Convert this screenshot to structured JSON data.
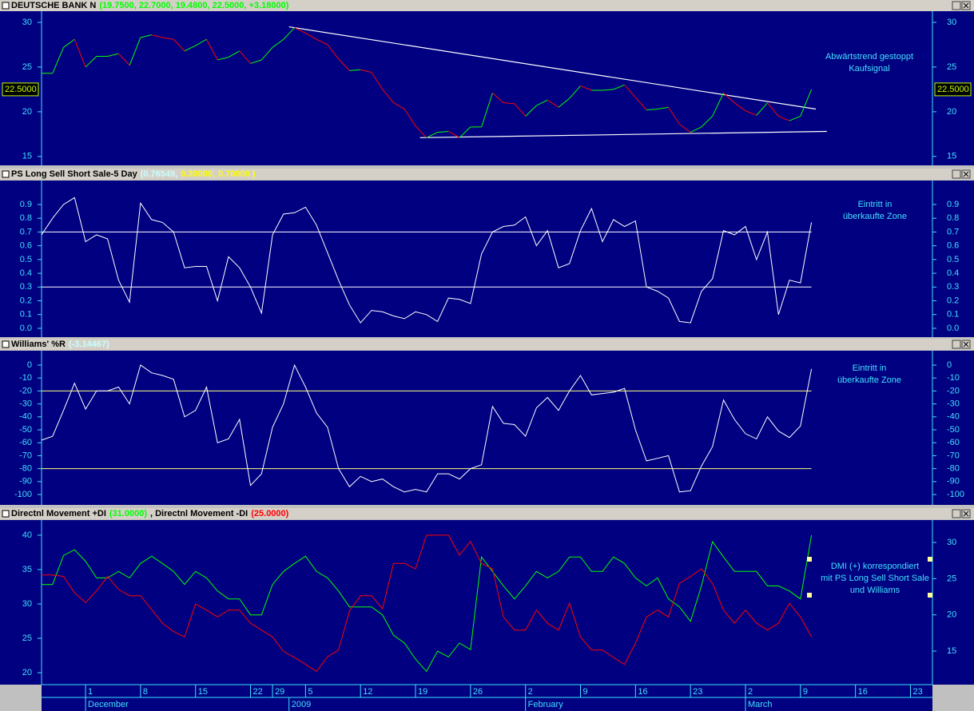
{
  "chart_data": [
    {
      "type": "line",
      "title_parts": [
        {
          "text": "DEUTSCHE BANK N",
          "color": "#000000"
        },
        {
          "text": "(19.7500, 22.7000, 19.4800, 22.5000, +3.18000)",
          "color": "#00ff00"
        }
      ],
      "x": [
        -4,
        -3,
        -2,
        -1,
        0,
        1,
        2,
        3,
        4,
        5,
        6,
        7,
        8,
        9,
        10,
        11,
        12,
        13,
        14,
        15,
        16,
        17,
        18,
        19,
        20,
        21,
        22,
        23,
        24,
        25,
        26,
        27,
        28,
        29,
        30,
        31,
        32,
        33,
        34,
        35,
        36,
        37,
        38,
        39,
        40,
        41,
        42,
        43,
        44,
        45,
        46,
        47,
        48,
        49,
        50,
        51,
        52,
        53,
        54,
        55,
        56,
        57,
        58,
        59,
        60,
        61,
        62,
        63,
        64,
        65,
        66
      ],
      "xlim": [
        -4,
        77
      ],
      "ylim": [
        14,
        31.25
      ],
      "yticks": [
        15,
        20,
        25,
        30
      ],
      "series": [
        {
          "up_color": "#00ff00",
          "down_color": "#ff0000",
          "values": [
            24.3,
            24.3,
            27.2,
            28.1,
            25,
            26.2,
            26.2,
            26.5,
            25.2,
            28.3,
            28.6,
            28.3,
            28.1,
            26.8,
            27.4,
            28.1,
            25.8,
            26.1,
            26.8,
            25.4,
            25.8,
            27.2,
            28.1,
            29.4,
            28.8,
            28.1,
            27.5,
            25.9,
            24.6,
            24.7,
            24.4,
            22.5,
            21,
            20.3,
            18.4,
            17.1,
            17.7,
            17.8,
            17.1,
            18.3,
            18.3,
            22.1,
            21,
            20.9,
            19.5,
            20.7,
            21.3,
            20.5,
            21.5,
            22.9,
            22.4,
            22.4,
            22.5,
            23,
            21.6,
            20.2,
            20.3,
            20.5,
            18.6,
            17.7,
            18.3,
            19.5,
            22.1,
            21,
            20.1,
            19.6,
            21,
            19.5,
            19,
            19.5,
            22.5
          ]
        }
      ],
      "last_value_label": "22.5000",
      "trendline_color": "#ffffff",
      "trendlines": [
        {
          "x": [
            18.5,
            66.4
          ],
          "y": [
            29.5,
            20.3
          ]
        },
        {
          "x": [
            30.4,
            67.4
          ],
          "y": [
            17.1,
            17.8
          ]
        }
      ],
      "annotation": [
        "Abwärtstrend gestoppt",
        "Kaufsignal"
      ]
    },
    {
      "type": "line",
      "title_parts": [
        {
          "text": "PS Long Sell Short Sale-5 Day",
          "color": "#000000"
        },
        {
          "text": "(0.76549,",
          "color": "#c8ffff"
        },
        {
          "text": "0.30000,",
          "color": "#ffff00"
        },
        {
          "text": "0.70000 )",
          "color": "#ffff00"
        }
      ],
      "x": [
        -4,
        -3,
        -2,
        -1,
        0,
        1,
        2,
        3,
        4,
        5,
        6,
        7,
        8,
        9,
        10,
        11,
        12,
        13,
        14,
        15,
        16,
        17,
        18,
        19,
        20,
        21,
        22,
        23,
        24,
        25,
        26,
        27,
        28,
        29,
        30,
        31,
        32,
        33,
        34,
        35,
        36,
        37,
        38,
        39,
        40,
        41,
        42,
        43,
        44,
        45,
        46,
        47,
        48,
        49,
        50,
        51,
        52,
        53,
        54,
        55,
        56,
        57,
        58,
        59,
        60,
        61,
        62,
        63,
        64,
        65,
        66
      ],
      "xlim": [
        -4,
        77
      ],
      "ylim": [
        -0.064,
        1.074
      ],
      "yticks": [
        {
          "value": 0,
          "label": "0.0"
        },
        0.1,
        0.2,
        0.3,
        0.4,
        0.5,
        0.6,
        0.7,
        0.8,
        0.9
      ],
      "hlines": [
        0.3,
        0.7
      ],
      "hline_color": "#ffffff",
      "series": [
        {
          "color": "#ffffff",
          "values": [
            0.68,
            0.8,
            0.9,
            0.95,
            0.63,
            0.68,
            0.65,
            0.35,
            0.19,
            0.91,
            0.79,
            0.77,
            0.7,
            0.44,
            0.45,
            0.45,
            0.2,
            0.52,
            0.44,
            0.3,
            0.11,
            0.68,
            0.83,
            0.84,
            0.88,
            0.75,
            0.55,
            0.35,
            0.17,
            0.04,
            0.13,
            0.12,
            0.09,
            0.07,
            0.12,
            0.1,
            0.05,
            0.22,
            0.21,
            0.18,
            0.54,
            0.7,
            0.74,
            0.75,
            0.81,
            0.6,
            0.71,
            0.44,
            0.47,
            0.71,
            0.87,
            0.63,
            0.79,
            0.74,
            0.78,
            0.3,
            0.27,
            0.22,
            0.05,
            0.04,
            0.27,
            0.36,
            0.71,
            0.68,
            0.74,
            0.5,
            0.7,
            0.1,
            0.35,
            0.33,
            0.77
          ]
        }
      ],
      "annotation": [
        "Eintritt in",
        "überkaufte Zone"
      ]
    },
    {
      "type": "line",
      "title_parts": [
        {
          "text": "Williams' %R",
          "color": "#000000"
        },
        {
          "text": "(-3.14467)",
          "color": "#c8ffff"
        }
      ],
      "x": [
        -4,
        -3,
        -2,
        -1,
        0,
        1,
        2,
        3,
        4,
        5,
        6,
        7,
        8,
        9,
        10,
        11,
        12,
        13,
        14,
        15,
        16,
        17,
        18,
        19,
        20,
        21,
        22,
        23,
        24,
        25,
        26,
        27,
        28,
        29,
        30,
        31,
        32,
        33,
        34,
        35,
        36,
        37,
        38,
        39,
        40,
        41,
        42,
        43,
        44,
        45,
        46,
        47,
        48,
        49,
        50,
        51,
        52,
        53,
        54,
        55,
        56,
        57,
        58,
        59,
        60,
        61,
        62,
        63,
        64,
        65,
        66
      ],
      "xlim": [
        -4,
        77
      ],
      "ylim": [
        -108,
        11.1
      ],
      "yticks": [
        0,
        -10,
        -20,
        -30,
        -40,
        -50,
        -60,
        -70,
        -80,
        -90,
        -100
      ],
      "hlines": [
        -20,
        -80
      ],
      "hline_color": "#ffff80",
      "series": [
        {
          "color": "#ffffff",
          "values": [
            -58,
            -55,
            -35,
            -14,
            -34,
            -20,
            -20,
            -17,
            -30,
            0,
            -6,
            -8,
            -11,
            -40,
            -35,
            -17,
            -60,
            -57,
            -42,
            -93,
            -84,
            -48,
            -30,
            0,
            -17,
            -37,
            -48,
            -80,
            -94,
            -86,
            -90,
            -88,
            -94,
            -98,
            -96,
            -98,
            -84,
            -84,
            -88,
            -80,
            -77,
            -32,
            -45,
            -46,
            -55,
            -33,
            -25,
            -35,
            -20,
            -8,
            -23,
            -22,
            -21,
            -18,
            -50,
            -74,
            -72,
            -70,
            -98,
            -97,
            -78,
            -63,
            -27,
            -42,
            -53,
            -57,
            -40,
            -51,
            -56,
            -47,
            -3
          ]
        }
      ],
      "annotation": [
        "Eintritt in",
        "überkaufte Zone"
      ]
    },
    {
      "type": "line",
      "title_parts": [
        {
          "text": "Directnl Movement +DI",
          "color": "#000000"
        },
        {
          "text": "(31.0000)",
          "color": "#00ff00"
        },
        {
          "text": ", Directnl Movement -DI",
          "color": "#000000"
        },
        {
          "text": "(25.0000)",
          "color": "#ff0000"
        }
      ],
      "x": [
        -4,
        -3,
        -2,
        -1,
        0,
        1,
        2,
        3,
        4,
        5,
        6,
        7,
        8,
        9,
        10,
        11,
        12,
        13,
        14,
        15,
        16,
        17,
        18,
        19,
        20,
        21,
        22,
        23,
        24,
        25,
        26,
        27,
        28,
        29,
        30,
        31,
        32,
        33,
        34,
        35,
        36,
        37,
        38,
        39,
        40,
        41,
        42,
        43,
        44,
        45,
        46,
        47,
        48,
        49,
        50,
        51,
        52,
        53,
        54,
        55,
        56,
        57,
        58,
        59,
        60,
        61,
        62,
        63,
        64,
        65,
        66
      ],
      "xlim": [
        -4,
        77
      ],
      "xticks": [
        {
          "value": 0,
          "label": "1"
        },
        {
          "value": 5,
          "label": "8"
        },
        {
          "value": 10,
          "label": "15"
        },
        {
          "value": 15,
          "label": "22"
        },
        {
          "value": 17,
          "label": "29"
        },
        {
          "value": 20,
          "label": "5"
        },
        {
          "value": 25,
          "label": "12"
        },
        {
          "value": 30,
          "label": "19"
        },
        {
          "value": 35,
          "label": "26"
        },
        {
          "value": 40,
          "label": "2"
        },
        {
          "value": 45,
          "label": "9"
        },
        {
          "value": 50,
          "label": "16"
        },
        {
          "value": 55,
          "label": "23"
        },
        {
          "value": 60,
          "label": "2"
        },
        {
          "value": 65,
          "label": "9"
        },
        {
          "value": 70,
          "label": "16"
        },
        {
          "value": 75,
          "label": "23"
        }
      ],
      "month_ticks": [
        {
          "value": 0,
          "label": "December"
        },
        {
          "value": 18.5,
          "label": "2009"
        },
        {
          "value": 40,
          "label": "February"
        },
        {
          "value": 60,
          "label": "March"
        }
      ],
      "ylim": [
        18.26,
        42.2
      ],
      "yticks": [
        20,
        25,
        30,
        35,
        40
      ],
      "y2lim": [
        10.37,
        33.09
      ],
      "y2ticks": [
        15,
        20,
        25,
        30
      ],
      "series": [
        {
          "color": "#00ff00",
          "axis": "y2",
          "values": [
            24.2,
            24.2,
            28.2,
            29.0,
            27.4,
            25.1,
            25.1,
            26.0,
            25.1,
            27.1,
            28.1,
            27.1,
            26.0,
            24.2,
            26.0,
            25.1,
            23.3,
            22.2,
            22.2,
            20.0,
            20.0,
            24.2,
            26.0,
            27.1,
            28.1,
            26.0,
            25.1,
            23.3,
            21.1,
            21.1,
            21.1,
            20.0,
            17.2,
            16.1,
            13.9,
            12.2,
            15.0,
            14.2,
            16.1,
            15.2,
            28.0,
            26.0,
            24.0,
            22.2,
            24.0,
            26.0,
            25.1,
            26.0,
            28.0,
            28.0,
            26.0,
            26.0,
            28.0,
            27.1,
            25.1,
            24.0,
            25.1,
            22.2,
            21.1,
            19.1,
            24.0,
            30.1,
            28.0,
            26.0,
            26.0,
            26.0,
            24.0,
            24.0,
            23.3,
            22.2,
            31.0
          ]
        },
        {
          "color": "#ff0000",
          "values": [
            34.2,
            34.2,
            34.0,
            31.6,
            30.2,
            31.9,
            34.0,
            32.1,
            31.2,
            31.2,
            29.2,
            27.2,
            26.0,
            25.2,
            30.0,
            29.1,
            28.1,
            29.1,
            29.1,
            27.2,
            26.2,
            25.2,
            23.1,
            22.2,
            21.2,
            20.2,
            22.3,
            23.3,
            29.0,
            31.2,
            31.2,
            29.3,
            35.9,
            35.9,
            35.1,
            40.0,
            40.0,
            40.0,
            37.1,
            39.1,
            35.9,
            35.1,
            28.1,
            26.2,
            26.2,
            29.1,
            27.2,
            26.2,
            30.1,
            25.2,
            23.3,
            23.3,
            22.2,
            21.2,
            24.3,
            28.1,
            29.1,
            28.1,
            33.0,
            34.0,
            35.1,
            33.0,
            29.1,
            27.2,
            29.1,
            27.2,
            26.2,
            27.2,
            30.1,
            28.1,
            25.2
          ]
        }
      ],
      "annotation": [
        "DMI (+) korrespondiert",
        "mit PS Long Sell Short Sale",
        "und Williams"
      ]
    }
  ]
}
